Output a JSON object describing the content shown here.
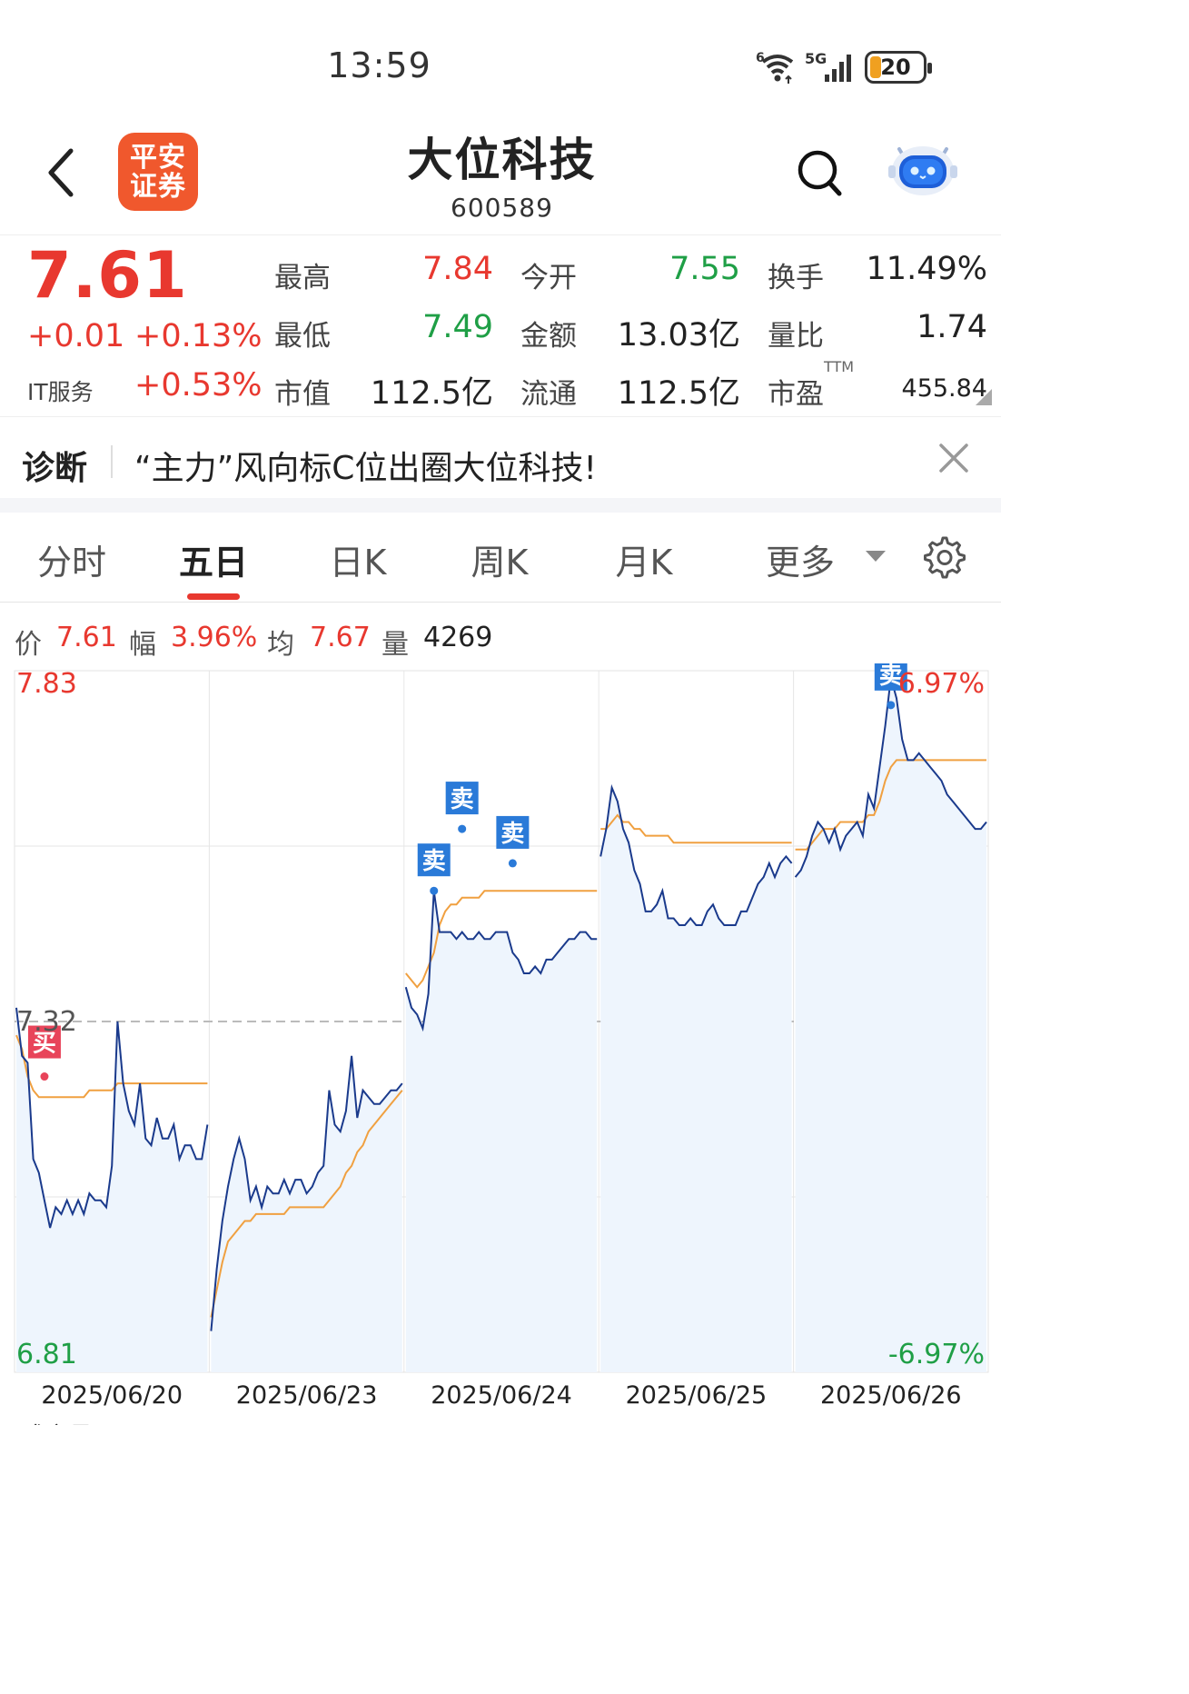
{
  "status_bar": {
    "time": "13:59",
    "signal_label": "5G",
    "wifi_label": "6",
    "battery": "20"
  },
  "header": {
    "logo_text": "平安\n证券",
    "stock_name": "大位科技",
    "stock_code": "600589"
  },
  "quote": {
    "price": "7.61",
    "change": "+0.01",
    "change_pct": "+0.13%",
    "sector": "IT服务",
    "sector_pct": "+0.53%",
    "fields": [
      {
        "label": "最高",
        "value": "7.84",
        "color": "red"
      },
      {
        "label": "今开",
        "value": "7.55",
        "color": "green"
      },
      {
        "label": "换手",
        "value": "11.49%",
        "color": "dark"
      },
      {
        "label": "最低",
        "value": "7.49",
        "color": "green"
      },
      {
        "label": "金额",
        "value": "13.03亿",
        "color": "dark"
      },
      {
        "label": "量比",
        "value": "1.74",
        "color": "dark"
      },
      {
        "label": "市值",
        "value": "112.5亿",
        "color": "dark"
      },
      {
        "label": "流通",
        "value": "112.5亿",
        "color": "dark"
      },
      {
        "label": "市盈",
        "value": "455.84",
        "color": "dark"
      }
    ],
    "ttm": "TTM"
  },
  "diagnosis": {
    "label": "诊断",
    "text": "“主力”风向标C位出圈大位科技!"
  },
  "tabs": [
    "分时",
    "五日",
    "日K",
    "周K",
    "月K",
    "更多"
  ],
  "active_tab": "五日",
  "info_row": {
    "price_label": "价",
    "price": "7.61",
    "range_label": "幅",
    "range": "3.96%",
    "avg_label": "均",
    "avg": "7.67",
    "vol_label": "量",
    "vol": "4269"
  },
  "chart_data": {
    "type": "line",
    "y_max_label": "7.83",
    "y_mid_label": "7.32",
    "y_min_label": "6.81",
    "pct_max_label": "6.97%",
    "pct_min_label": "-6.97%",
    "ylim": [
      6.81,
      7.83
    ],
    "reference_price": 7.32,
    "x_labels": [
      "2025/06/20",
      "2025/06/23",
      "2025/06/24",
      "2025/06/25",
      "2025/06/26"
    ],
    "series": [
      {
        "values": [
          7.34,
          7.27,
          7.26,
          7.12,
          7.1,
          7.06,
          7.02,
          7.05,
          7.04,
          7.06,
          7.04,
          7.06,
          7.04,
          7.07,
          7.06,
          7.06,
          7.05,
          7.11,
          7.32,
          7.23,
          7.19,
          7.17,
          7.23,
          7.15,
          7.14,
          7.18,
          7.15,
          7.15,
          7.17,
          7.12,
          7.14,
          7.14,
          7.12,
          7.12,
          7.17,
          6.87,
          6.96,
          7.03,
          7.08,
          7.12,
          7.15,
          7.12,
          7.06,
          7.08,
          7.05,
          7.08,
          7.07,
          7.07,
          7.09,
          7.07,
          7.09,
          7.09,
          7.07,
          7.08,
          7.1,
          7.11,
          7.22,
          7.17,
          7.16,
          7.19,
          7.27,
          7.18,
          7.22,
          7.21,
          7.2,
          7.2,
          7.21,
          7.22,
          7.22,
          7.23,
          7.37,
          7.34,
          7.33,
          7.31,
          7.36,
          7.51,
          7.45,
          7.45,
          7.45,
          7.44,
          7.45,
          7.44,
          7.44,
          7.45,
          7.44,
          7.44,
          7.45,
          7.45,
          7.45,
          7.42,
          7.41,
          7.39,
          7.39,
          7.4,
          7.39,
          7.41,
          7.41,
          7.42,
          7.43,
          7.44,
          7.44,
          7.45,
          7.45,
          7.44,
          7.44,
          7.56,
          7.6,
          7.66,
          7.64,
          7.6,
          7.58,
          7.54,
          7.52,
          7.48,
          7.48,
          7.49,
          7.51,
          7.47,
          7.47,
          7.46,
          7.46,
          7.47,
          7.46,
          7.46,
          7.48,
          7.49,
          7.47,
          7.46,
          7.46,
          7.46,
          7.48,
          7.48,
          7.5,
          7.52,
          7.53,
          7.55,
          7.53,
          7.55,
          7.56,
          7.55,
          7.53,
          7.54,
          7.56,
          7.59,
          7.61,
          7.6,
          7.58,
          7.6,
          7.57,
          7.59,
          7.6,
          7.61,
          7.59,
          7.65,
          7.63,
          7.69,
          7.75,
          7.82,
          7.79,
          7.73,
          7.7,
          7.7,
          7.71,
          7.7,
          7.69,
          7.68,
          7.67,
          7.65,
          7.64,
          7.63,
          7.62,
          7.61,
          7.6,
          7.6,
          7.61
        ]
      },
      {
        "values": [
          7.3,
          7.28,
          7.24,
          7.22,
          7.21,
          7.21,
          7.21,
          7.21,
          7.21,
          7.21,
          7.21,
          7.21,
          7.21,
          7.22,
          7.22,
          7.22,
          7.22,
          7.22,
          7.23,
          7.23,
          7.23,
          7.23,
          7.23,
          7.23,
          7.23,
          7.23,
          7.23,
          7.23,
          7.23,
          7.23,
          7.23,
          7.23,
          7.23,
          7.23,
          7.23,
          6.89,
          6.93,
          6.97,
          7.0,
          7.01,
          7.02,
          7.03,
          7.03,
          7.04,
          7.04,
          7.04,
          7.04,
          7.04,
          7.04,
          7.05,
          7.05,
          7.05,
          7.05,
          7.05,
          7.05,
          7.05,
          7.06,
          7.07,
          7.08,
          7.1,
          7.11,
          7.13,
          7.14,
          7.16,
          7.17,
          7.18,
          7.19,
          7.2,
          7.21,
          7.22,
          7.39,
          7.38,
          7.37,
          7.38,
          7.4,
          7.42,
          7.46,
          7.48,
          7.49,
          7.49,
          7.5,
          7.5,
          7.5,
          7.5,
          7.51,
          7.51,
          7.51,
          7.51,
          7.51,
          7.51,
          7.51,
          7.51,
          7.51,
          7.51,
          7.51,
          7.51,
          7.51,
          7.51,
          7.51,
          7.51,
          7.51,
          7.51,
          7.51,
          7.51,
          7.51,
          7.6,
          7.6,
          7.61,
          7.62,
          7.61,
          7.61,
          7.6,
          7.6,
          7.59,
          7.59,
          7.59,
          7.59,
          7.59,
          7.58,
          7.58,
          7.58,
          7.58,
          7.58,
          7.58,
          7.58,
          7.58,
          7.58,
          7.58,
          7.58,
          7.58,
          7.58,
          7.58,
          7.58,
          7.58,
          7.58,
          7.58,
          7.58,
          7.58,
          7.58,
          7.58,
          7.57,
          7.57,
          7.57,
          7.58,
          7.59,
          7.6,
          7.6,
          7.6,
          7.61,
          7.61,
          7.61,
          7.61,
          7.61,
          7.62,
          7.62,
          7.64,
          7.67,
          7.69,
          7.7,
          7.7,
          7.7,
          7.7,
          7.7,
          7.7,
          7.7,
          7.7,
          7.7,
          7.7,
          7.7,
          7.7,
          7.7,
          7.7,
          7.7,
          7.7,
          7.7
        ]
      }
    ],
    "markers": [
      {
        "label": "买",
        "index": 5,
        "price": 7.24
      },
      {
        "label": "卖",
        "index": 75,
        "price": 7.51
      },
      {
        "label": "卖",
        "index": 80,
        "price": 7.6
      },
      {
        "label": "卖",
        "index": 89,
        "price": 7.55
      },
      {
        "label": "卖",
        "index": 157,
        "price": 7.78
      }
    ],
    "colors": {
      "price_line": "#1a3a8c",
      "avg_line": "#f0a040",
      "buy": "#e8445a",
      "sell": "#2a7ad8",
      "fill": "#eef5fd"
    }
  },
  "bottom_cut_text": "成交量"
}
